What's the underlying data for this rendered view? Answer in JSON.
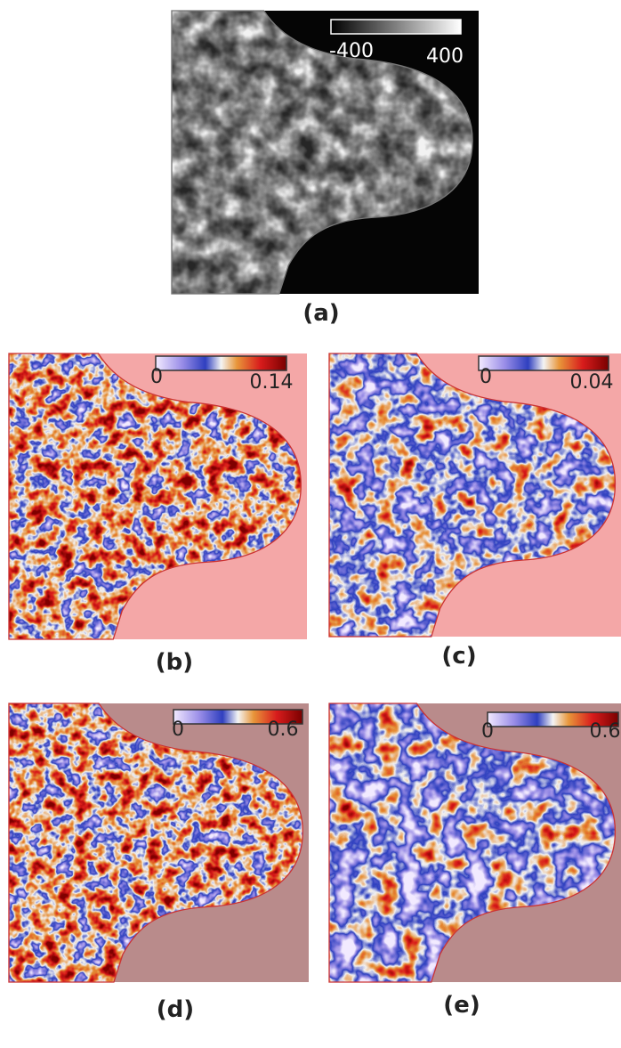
{
  "panels": [
    {
      "label": "(a)",
      "colorbar_min": "-400",
      "colorbar_max": "400"
    },
    {
      "label": "(b)",
      "colorbar_min": "0",
      "colorbar_max": "0.14"
    },
    {
      "label": "(c)",
      "colorbar_min": "0",
      "colorbar_max": "0.04"
    },
    {
      "label": "(d)",
      "colorbar_min": "0",
      "colorbar_max": "0.6"
    },
    {
      "label": "(e)",
      "colorbar_min": "0",
      "colorbar_max": "0.6"
    }
  ]
}
